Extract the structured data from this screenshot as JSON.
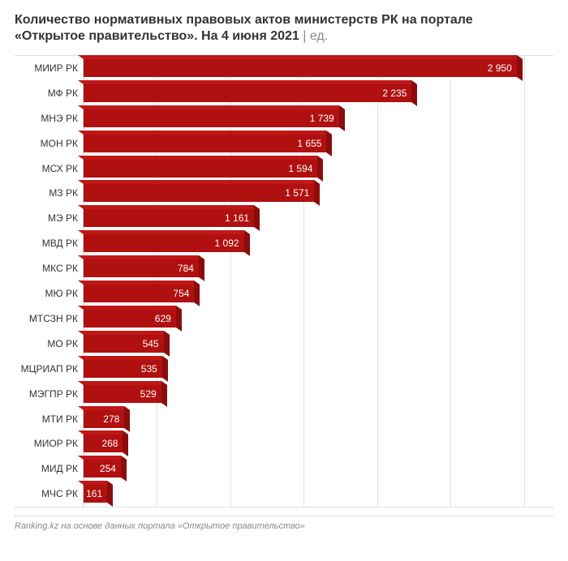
{
  "title_line1": "Количество нормативных правовых актов министерств РК на портале",
  "title_line2": "«Открытое правительство». На 4 июня 2021",
  "unit_sep": " | ",
  "unit": "ед.",
  "footer": "Ranking.kz на основе данных портала «Открытое правительство»",
  "chart": {
    "type": "bar",
    "orientation": "horizontal",
    "xmax": 3200,
    "grid_step": 500,
    "bar_color_front": "#b01010",
    "bar_color_top": "#c01717",
    "bar_color_side": "#8a0c0c",
    "grid_color": "#e3e3e3",
    "axis_color": "#cccccc",
    "background_color": "#ffffff",
    "label_fontsize": 12,
    "value_color": "#ffffff",
    "title_fontsize": 16,
    "items": [
      {
        "label": "МИИР РК",
        "value": 2950,
        "display": "2 950"
      },
      {
        "label": "МФ РК",
        "value": 2235,
        "display": "2 235"
      },
      {
        "label": "МНЭ РК",
        "value": 1739,
        "display": "1 739"
      },
      {
        "label": "МОН РК",
        "value": 1655,
        "display": "1 655"
      },
      {
        "label": "МСХ РК",
        "value": 1594,
        "display": "1 594"
      },
      {
        "label": "МЗ РК",
        "value": 1571,
        "display": "1 571"
      },
      {
        "label": "МЭ РК",
        "value": 1161,
        "display": "1 161"
      },
      {
        "label": "МВД РК",
        "value": 1092,
        "display": "1 092"
      },
      {
        "label": "МКС РК",
        "value": 784,
        "display": "784"
      },
      {
        "label": "МЮ РК",
        "value": 754,
        "display": "754"
      },
      {
        "label": "МТСЗН РК",
        "value": 629,
        "display": "629"
      },
      {
        "label": "МО РК",
        "value": 545,
        "display": "545"
      },
      {
        "label": "МЦРИАП РК",
        "value": 535,
        "display": "535"
      },
      {
        "label": "МЭГПР РК",
        "value": 529,
        "display": "529"
      },
      {
        "label": "МТИ РК",
        "value": 278,
        "display": "278"
      },
      {
        "label": "МИОР РК",
        "value": 268,
        "display": "268"
      },
      {
        "label": "МИД РК",
        "value": 254,
        "display": "254"
      },
      {
        "label": "МЧС РК",
        "value": 161,
        "display": "161"
      }
    ]
  }
}
